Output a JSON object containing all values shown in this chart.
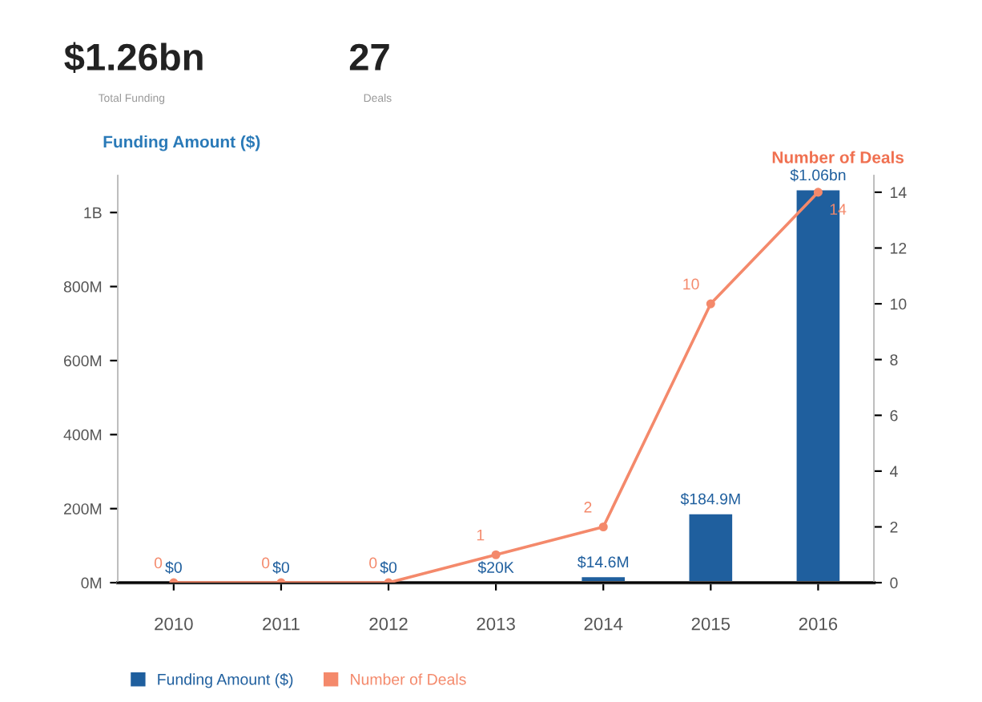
{
  "chart_data": {
    "type": "bar",
    "annotations": [
      "$1.26bn",
      "Total Funding",
      "27",
      "Deals"
    ],
    "ylabel": "Funding Amount ($)",
    "y2label": "Number of Deals",
    "categories": [
      "2010",
      "2011",
      "2012",
      "2013",
      "2014",
      "2015",
      "2016"
    ],
    "series": [
      {
        "name": "Funding Amount ($)",
        "color": "#1f5f9e",
        "values": [
          0,
          0,
          0,
          20000,
          14600000,
          184900000,
          1060000000
        ],
        "value_labels": [
          "$0",
          "$0",
          "$0",
          "$20K",
          "$14.6M",
          "$184.9M",
          "$1.06bn"
        ]
      },
      {
        "name": "Number of Deals",
        "type": "line",
        "axis": "y2",
        "color": "#f4896b",
        "marker": "circle",
        "values": [
          0,
          0,
          0,
          1,
          2,
          10,
          14
        ],
        "value_labels": [
          "0",
          "0",
          "0",
          "1",
          "2",
          "10",
          "14"
        ]
      }
    ],
    "ylim": [
      0,
      1100000000
    ],
    "yticks": [
      {
        "value": 0,
        "label": "0M"
      },
      {
        "value": 200000000,
        "label": "200M"
      },
      {
        "value": 400000000,
        "label": "400M"
      },
      {
        "value": 600000000,
        "label": "600M"
      },
      {
        "value": 800000000,
        "label": "800M"
      },
      {
        "value": 1000000000,
        "label": "1B"
      }
    ],
    "y2lim": [
      0,
      14.6
    ],
    "y2ticks": [
      0,
      2,
      4,
      6,
      8,
      10,
      12,
      14
    ],
    "legend": "bottom",
    "grid": false
  }
}
